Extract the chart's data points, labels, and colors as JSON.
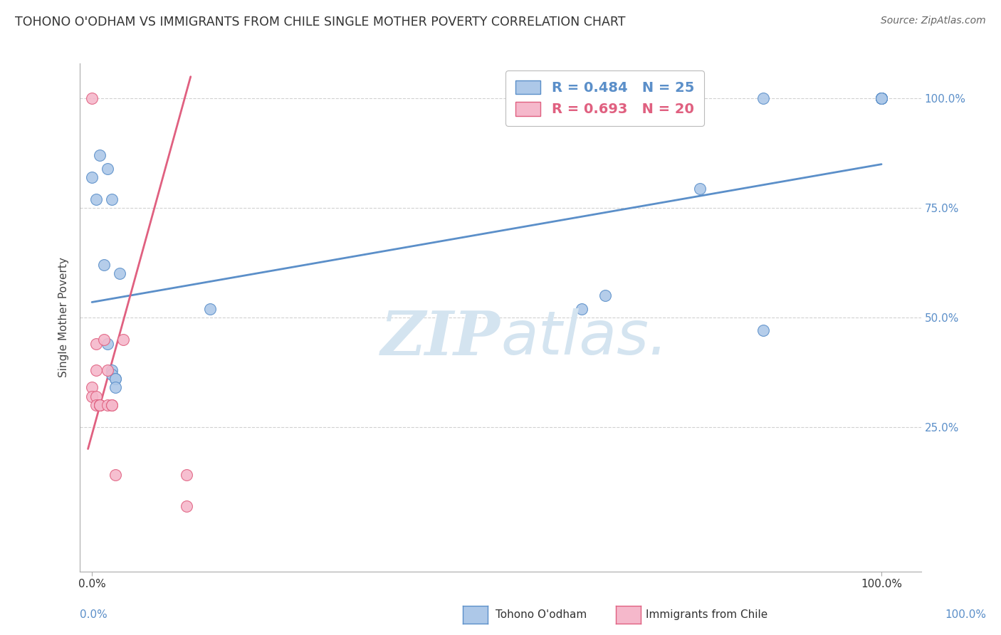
{
  "title": "TOHONO O'ODHAM VS IMMIGRANTS FROM CHILE SINGLE MOTHER POVERTY CORRELATION CHART",
  "source": "Source: ZipAtlas.com",
  "ylabel": "Single Mother Poverty",
  "legend_label1": "Tohono O'odham",
  "legend_label2": "Immigrants from Chile",
  "r_blue": 0.484,
  "n_blue": 25,
  "r_pink": 0.693,
  "n_pink": 20,
  "blue_color": "#adc8e8",
  "pink_color": "#f5b8cb",
  "blue_line_color": "#5b8fc9",
  "pink_line_color": "#e06080",
  "background_color": "#ffffff",
  "grid_color": "#cccccc",
  "watermark_color": "#d4e4f0",
  "blue_points_x": [
    0.0,
    0.005,
    0.01,
    0.015,
    0.02,
    0.02,
    0.025,
    0.025,
    0.025,
    0.03,
    0.03,
    0.03,
    0.035,
    0.15,
    0.62,
    0.65,
    0.77,
    0.85,
    0.85,
    1.0,
    1.0,
    1.0,
    1.0,
    1.0,
    1.0
  ],
  "blue_points_y": [
    0.82,
    0.77,
    0.87,
    0.62,
    0.44,
    0.84,
    0.77,
    0.38,
    0.37,
    0.36,
    0.36,
    0.34,
    0.6,
    0.52,
    0.52,
    0.55,
    0.795,
    0.47,
    1.0,
    1.0,
    1.0,
    1.0,
    1.0,
    1.0,
    1.0
  ],
  "pink_points_x": [
    0.0,
    0.0,
    0.0,
    0.005,
    0.005,
    0.005,
    0.005,
    0.01,
    0.01,
    0.01,
    0.01,
    0.015,
    0.02,
    0.02,
    0.025,
    0.025,
    0.03,
    0.04,
    0.12,
    0.12
  ],
  "pink_points_y": [
    0.34,
    0.32,
    1.0,
    0.44,
    0.38,
    0.32,
    0.3,
    0.3,
    0.3,
    0.3,
    0.3,
    0.45,
    0.38,
    0.3,
    0.3,
    0.3,
    0.14,
    0.45,
    0.14,
    0.07
  ],
  "blue_line_x": [
    0.0,
    1.0
  ],
  "blue_line_y": [
    0.535,
    0.85
  ],
  "pink_line_x": [
    -0.005,
    0.125
  ],
  "pink_line_y": [
    0.2,
    1.05
  ],
  "ylim": [
    -0.08,
    1.08
  ],
  "xlim": [
    -0.015,
    1.05
  ],
  "yticks": [
    0.25,
    0.5,
    0.75,
    1.0
  ],
  "ytick_labels": [
    "25.0%",
    "50.0%",
    "75.0%",
    "100.0%"
  ],
  "xticks": [
    0.0,
    1.0
  ],
  "xtick_labels": [
    "0.0%",
    "100.0%"
  ]
}
